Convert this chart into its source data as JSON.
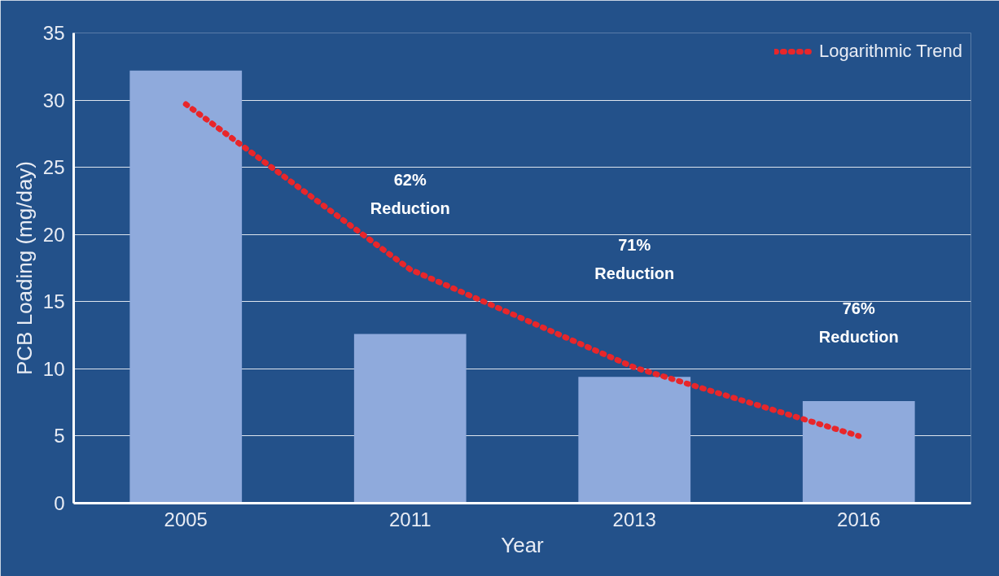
{
  "chart_data": {
    "type": "bar",
    "xlabel": "Year",
    "ylabel": "PCB Loading (mg/day)",
    "categories": [
      "2005",
      "2011",
      "2013",
      "2016"
    ],
    "series": [
      {
        "color": "#8faadc",
        "values": [
          32.2,
          12.6,
          9.4,
          7.6
        ]
      },
      {
        "type": "line",
        "name": "Logarithmic Trend",
        "color": "#e8262a",
        "line_style": "dotted",
        "values": [
          29.7,
          17.4,
          10.1,
          5.0
        ]
      }
    ],
    "ylim": [
      0,
      35
    ],
    "yticks": [
      0,
      5,
      10,
      15,
      20,
      25,
      30,
      35
    ],
    "grid": "y",
    "legend": "top right",
    "annotations": [
      "62%\nReduction",
      "71%\nReduction",
      "76%\nReduction"
    ]
  }
}
